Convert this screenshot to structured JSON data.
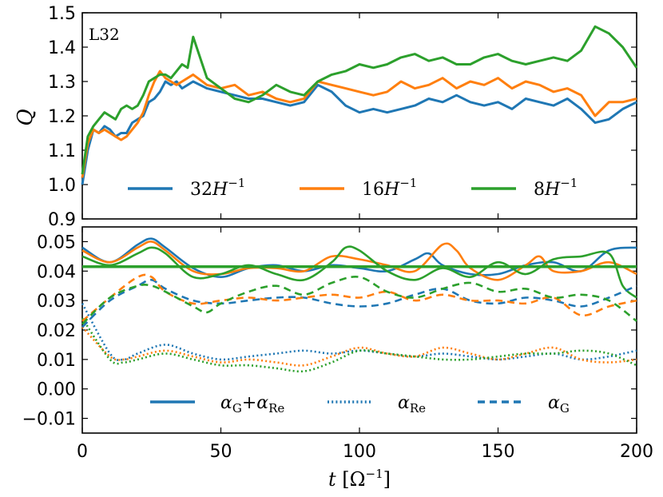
{
  "colors": {
    "blue": "#1f77b4",
    "orange": "#ff7f0e",
    "green": "#2ca02c",
    "axis": "#000000"
  },
  "chart_data": [
    {
      "type": "line",
      "panel": "top",
      "panel_label": "L32",
      "ylabel": "Q",
      "xlim": [
        0,
        200
      ],
      "ylim": [
        0.9,
        1.5
      ],
      "yticks": [
        "0.9",
        "1.0",
        "1.1",
        "1.2",
        "1.3",
        "1.4",
        "1.5"
      ],
      "legend_position": "lower-center",
      "series": [
        {
          "name": "32H−1",
          "legend_main": "32",
          "legend_sup": "−1",
          "color": "#1f77b4",
          "x": [
            0,
            2,
            4,
            6,
            8,
            10,
            12,
            14,
            16,
            18,
            20,
            22,
            24,
            26,
            28,
            30,
            32,
            34,
            36,
            38,
            40,
            45,
            50,
            55,
            60,
            65,
            70,
            75,
            80,
            85,
            90,
            95,
            100,
            105,
            110,
            115,
            120,
            125,
            130,
            135,
            140,
            145,
            150,
            155,
            160,
            165,
            170,
            175,
            180,
            185,
            190,
            195,
            200
          ],
          "y": [
            1.0,
            1.1,
            1.16,
            1.15,
            1.17,
            1.16,
            1.14,
            1.15,
            1.15,
            1.18,
            1.19,
            1.2,
            1.24,
            1.25,
            1.27,
            1.3,
            1.29,
            1.3,
            1.28,
            1.29,
            1.3,
            1.28,
            1.27,
            1.26,
            1.25,
            1.25,
            1.24,
            1.23,
            1.24,
            1.29,
            1.27,
            1.23,
            1.21,
            1.22,
            1.21,
            1.22,
            1.23,
            1.25,
            1.24,
            1.26,
            1.24,
            1.23,
            1.24,
            1.22,
            1.25,
            1.24,
            1.23,
            1.25,
            1.22,
            1.18,
            1.19,
            1.22,
            1.24
          ]
        },
        {
          "name": "16H−1",
          "legend_main": "16",
          "legend_sup": "−1",
          "color": "#ff7f0e",
          "x": [
            0,
            2,
            4,
            6,
            8,
            10,
            12,
            14,
            16,
            18,
            20,
            22,
            24,
            26,
            28,
            30,
            32,
            34,
            36,
            38,
            40,
            45,
            50,
            55,
            60,
            65,
            70,
            75,
            80,
            85,
            90,
            95,
            100,
            105,
            110,
            115,
            120,
            125,
            130,
            135,
            140,
            145,
            150,
            155,
            160,
            165,
            170,
            175,
            180,
            185,
            190,
            195,
            200
          ],
          "y": [
            1.02,
            1.12,
            1.16,
            1.15,
            1.16,
            1.15,
            1.14,
            1.13,
            1.14,
            1.16,
            1.18,
            1.21,
            1.26,
            1.3,
            1.33,
            1.31,
            1.3,
            1.29,
            1.3,
            1.31,
            1.32,
            1.29,
            1.28,
            1.29,
            1.26,
            1.27,
            1.25,
            1.24,
            1.25,
            1.3,
            1.29,
            1.28,
            1.27,
            1.26,
            1.27,
            1.3,
            1.28,
            1.29,
            1.31,
            1.28,
            1.3,
            1.29,
            1.31,
            1.28,
            1.3,
            1.29,
            1.27,
            1.28,
            1.26,
            1.2,
            1.24,
            1.24,
            1.25
          ]
        },
        {
          "name": "8H−1",
          "legend_main": "8",
          "legend_sup": "−1",
          "color": "#2ca02c",
          "x": [
            0,
            2,
            4,
            6,
            8,
            10,
            12,
            14,
            16,
            18,
            20,
            22,
            24,
            26,
            28,
            30,
            32,
            34,
            36,
            38,
            40,
            45,
            50,
            55,
            60,
            65,
            70,
            75,
            80,
            85,
            90,
            95,
            100,
            105,
            110,
            115,
            120,
            125,
            130,
            135,
            140,
            145,
            150,
            155,
            160,
            165,
            170,
            175,
            180,
            185,
            190,
            195,
            200
          ],
          "y": [
            1.03,
            1.14,
            1.17,
            1.19,
            1.21,
            1.2,
            1.19,
            1.22,
            1.23,
            1.22,
            1.23,
            1.26,
            1.3,
            1.31,
            1.32,
            1.32,
            1.31,
            1.33,
            1.35,
            1.34,
            1.43,
            1.31,
            1.28,
            1.25,
            1.24,
            1.26,
            1.29,
            1.27,
            1.26,
            1.3,
            1.32,
            1.33,
            1.35,
            1.34,
            1.35,
            1.37,
            1.38,
            1.36,
            1.37,
            1.35,
            1.35,
            1.37,
            1.38,
            1.36,
            1.35,
            1.36,
            1.37,
            1.36,
            1.39,
            1.46,
            1.44,
            1.4,
            1.34
          ]
        }
      ]
    },
    {
      "type": "line",
      "panel": "bottom",
      "xlabel": "t [Ω−1]",
      "xlim": [
        0,
        200
      ],
      "ylim": [
        -0.015,
        0.055
      ],
      "xticks": [
        "0",
        "50",
        "100",
        "150",
        "200"
      ],
      "yticks": [
        "−0.01",
        "0.00",
        "0.01",
        "0.02",
        "0.03",
        "0.04",
        "0.05"
      ],
      "reference_line": {
        "y": 0.0415,
        "color": "#2ca02c"
      },
      "legend_position": "lower-center",
      "legend": [
        {
          "label": "αG+αRe",
          "style": "solid"
        },
        {
          "label": "αRe",
          "style": "dotted"
        },
        {
          "label": "αG",
          "style": "dashed"
        }
      ],
      "series": [
        {
          "name": "32H−1 αG+αRe",
          "style": "solid",
          "color": "#1f77b4",
          "x": [
            0,
            10,
            20,
            25,
            30,
            40,
            50,
            60,
            70,
            80,
            90,
            100,
            110,
            120,
            125,
            130,
            140,
            150,
            160,
            170,
            180,
            190,
            200
          ],
          "y": [
            0.048,
            0.043,
            0.049,
            0.051,
            0.048,
            0.041,
            0.038,
            0.041,
            0.042,
            0.04,
            0.042,
            0.041,
            0.04,
            0.044,
            0.046,
            0.042,
            0.039,
            0.039,
            0.042,
            0.043,
            0.04,
            0.047,
            0.048
          ]
        },
        {
          "name": "16H−1 αG+αRe",
          "style": "solid",
          "color": "#ff7f0e",
          "x": [
            0,
            10,
            20,
            25,
            30,
            40,
            50,
            60,
            70,
            80,
            90,
            100,
            110,
            120,
            130,
            135,
            140,
            150,
            160,
            165,
            170,
            180,
            190,
            200
          ],
          "y": [
            0.047,
            0.043,
            0.048,
            0.05,
            0.047,
            0.04,
            0.039,
            0.041,
            0.041,
            0.04,
            0.045,
            0.044,
            0.042,
            0.04,
            0.049,
            0.047,
            0.041,
            0.037,
            0.042,
            0.045,
            0.04,
            0.04,
            0.043,
            0.039
          ]
        },
        {
          "name": "8H−1 αG+αRe",
          "style": "solid",
          "color": "#2ca02c",
          "x": [
            0,
            10,
            20,
            25,
            30,
            40,
            50,
            60,
            70,
            80,
            90,
            95,
            100,
            110,
            120,
            130,
            140,
            150,
            160,
            170,
            180,
            190,
            195,
            200
          ],
          "y": [
            0.045,
            0.042,
            0.046,
            0.048,
            0.046,
            0.038,
            0.039,
            0.042,
            0.039,
            0.037,
            0.043,
            0.048,
            0.047,
            0.04,
            0.037,
            0.041,
            0.038,
            0.043,
            0.039,
            0.044,
            0.045,
            0.046,
            0.035,
            0.031
          ]
        },
        {
          "name": "32H−1 αRe",
          "style": "dotted",
          "color": "#1f77b4",
          "x": [
            0,
            10,
            15,
            20,
            30,
            40,
            50,
            60,
            70,
            80,
            90,
            100,
            110,
            120,
            130,
            140,
            150,
            160,
            170,
            180,
            190,
            200
          ],
          "y": [
            0.029,
            0.012,
            0.01,
            0.012,
            0.015,
            0.012,
            0.01,
            0.011,
            0.012,
            0.013,
            0.012,
            0.013,
            0.012,
            0.011,
            0.012,
            0.011,
            0.01,
            0.011,
            0.012,
            0.01,
            0.011,
            0.013
          ]
        },
        {
          "name": "16H−1 αRe",
          "style": "dotted",
          "color": "#ff7f0e",
          "x": [
            0,
            10,
            15,
            20,
            30,
            40,
            50,
            60,
            70,
            80,
            90,
            100,
            110,
            120,
            130,
            140,
            150,
            160,
            170,
            180,
            190,
            200
          ],
          "y": [
            0.021,
            0.011,
            0.01,
            0.011,
            0.013,
            0.011,
            0.009,
            0.01,
            0.009,
            0.008,
            0.011,
            0.014,
            0.012,
            0.011,
            0.014,
            0.012,
            0.01,
            0.012,
            0.014,
            0.01,
            0.009,
            0.01
          ]
        },
        {
          "name": "8H−1 αRe",
          "style": "dotted",
          "color": "#2ca02c",
          "x": [
            0,
            10,
            15,
            20,
            30,
            40,
            50,
            60,
            70,
            80,
            90,
            100,
            110,
            120,
            130,
            140,
            150,
            160,
            170,
            180,
            190,
            200
          ],
          "y": [
            0.024,
            0.01,
            0.009,
            0.01,
            0.012,
            0.01,
            0.008,
            0.008,
            0.007,
            0.006,
            0.009,
            0.013,
            0.012,
            0.011,
            0.01,
            0.01,
            0.011,
            0.012,
            0.012,
            0.013,
            0.012,
            0.008
          ]
        },
        {
          "name": "32H−1 αG",
          "style": "dashed",
          "color": "#1f77b4",
          "x": [
            0,
            10,
            20,
            25,
            30,
            40,
            50,
            60,
            70,
            80,
            90,
            100,
            110,
            120,
            130,
            140,
            150,
            160,
            170,
            180,
            190,
            200
          ],
          "y": [
            0.021,
            0.03,
            0.035,
            0.037,
            0.034,
            0.03,
            0.029,
            0.03,
            0.031,
            0.031,
            0.029,
            0.028,
            0.029,
            0.032,
            0.034,
            0.03,
            0.029,
            0.031,
            0.03,
            0.028,
            0.031,
            0.035
          ]
        },
        {
          "name": "16H−1 αG",
          "style": "dashed",
          "color": "#ff7f0e",
          "x": [
            0,
            10,
            20,
            25,
            30,
            40,
            50,
            60,
            70,
            80,
            90,
            100,
            110,
            120,
            130,
            140,
            150,
            160,
            170,
            180,
            190,
            200
          ],
          "y": [
            0.023,
            0.031,
            0.038,
            0.038,
            0.033,
            0.029,
            0.03,
            0.031,
            0.03,
            0.031,
            0.032,
            0.031,
            0.033,
            0.03,
            0.032,
            0.03,
            0.03,
            0.029,
            0.031,
            0.025,
            0.028,
            0.03
          ]
        },
        {
          "name": "8H−1 αG",
          "style": "dashed",
          "color": "#2ca02c",
          "x": [
            0,
            10,
            20,
            25,
            30,
            40,
            45,
            50,
            60,
            70,
            80,
            90,
            100,
            110,
            120,
            130,
            140,
            150,
            160,
            170,
            180,
            190,
            200
          ],
          "y": [
            0.022,
            0.031,
            0.035,
            0.035,
            0.033,
            0.028,
            0.026,
            0.029,
            0.033,
            0.035,
            0.032,
            0.036,
            0.038,
            0.033,
            0.031,
            0.034,
            0.036,
            0.033,
            0.034,
            0.031,
            0.032,
            0.03,
            0.023
          ]
        }
      ]
    }
  ]
}
